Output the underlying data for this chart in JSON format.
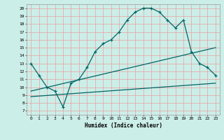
{
  "title": "",
  "xlabel": "Humidex (Indice chaleur)",
  "background_color": "#cceee8",
  "grid_color_major": "#e8a0a0",
  "grid_color_minor": "#e8c8c8",
  "line_color": "#006666",
  "xlim": [
    -0.5,
    23.5
  ],
  "ylim": [
    6.5,
    20.5
  ],
  "xticks": [
    0,
    1,
    2,
    3,
    4,
    5,
    6,
    7,
    8,
    9,
    10,
    11,
    12,
    13,
    14,
    15,
    16,
    17,
    18,
    19,
    20,
    21,
    22,
    23
  ],
  "yticks": [
    7,
    8,
    9,
    10,
    11,
    12,
    13,
    14,
    15,
    16,
    17,
    18,
    19,
    20
  ],
  "humidex_x": [
    0,
    1,
    2,
    3,
    4,
    5,
    6,
    7,
    8,
    9,
    10,
    11,
    12,
    13,
    14,
    15,
    16,
    17,
    18,
    19,
    20,
    21,
    22,
    23
  ],
  "humidex_y": [
    13,
    11.5,
    10,
    9.5,
    7.5,
    10.5,
    11,
    12.5,
    14.5,
    15.5,
    16,
    17,
    18.5,
    19.5,
    20,
    20,
    19.5,
    18.5,
    17.5,
    18.5,
    14.5,
    13,
    12.5,
    11.5
  ],
  "line2_x": [
    0,
    23
  ],
  "line2_y": [
    9.5,
    15.0
  ],
  "line3_x": [
    0,
    23
  ],
  "line3_y": [
    8.8,
    10.5
  ]
}
